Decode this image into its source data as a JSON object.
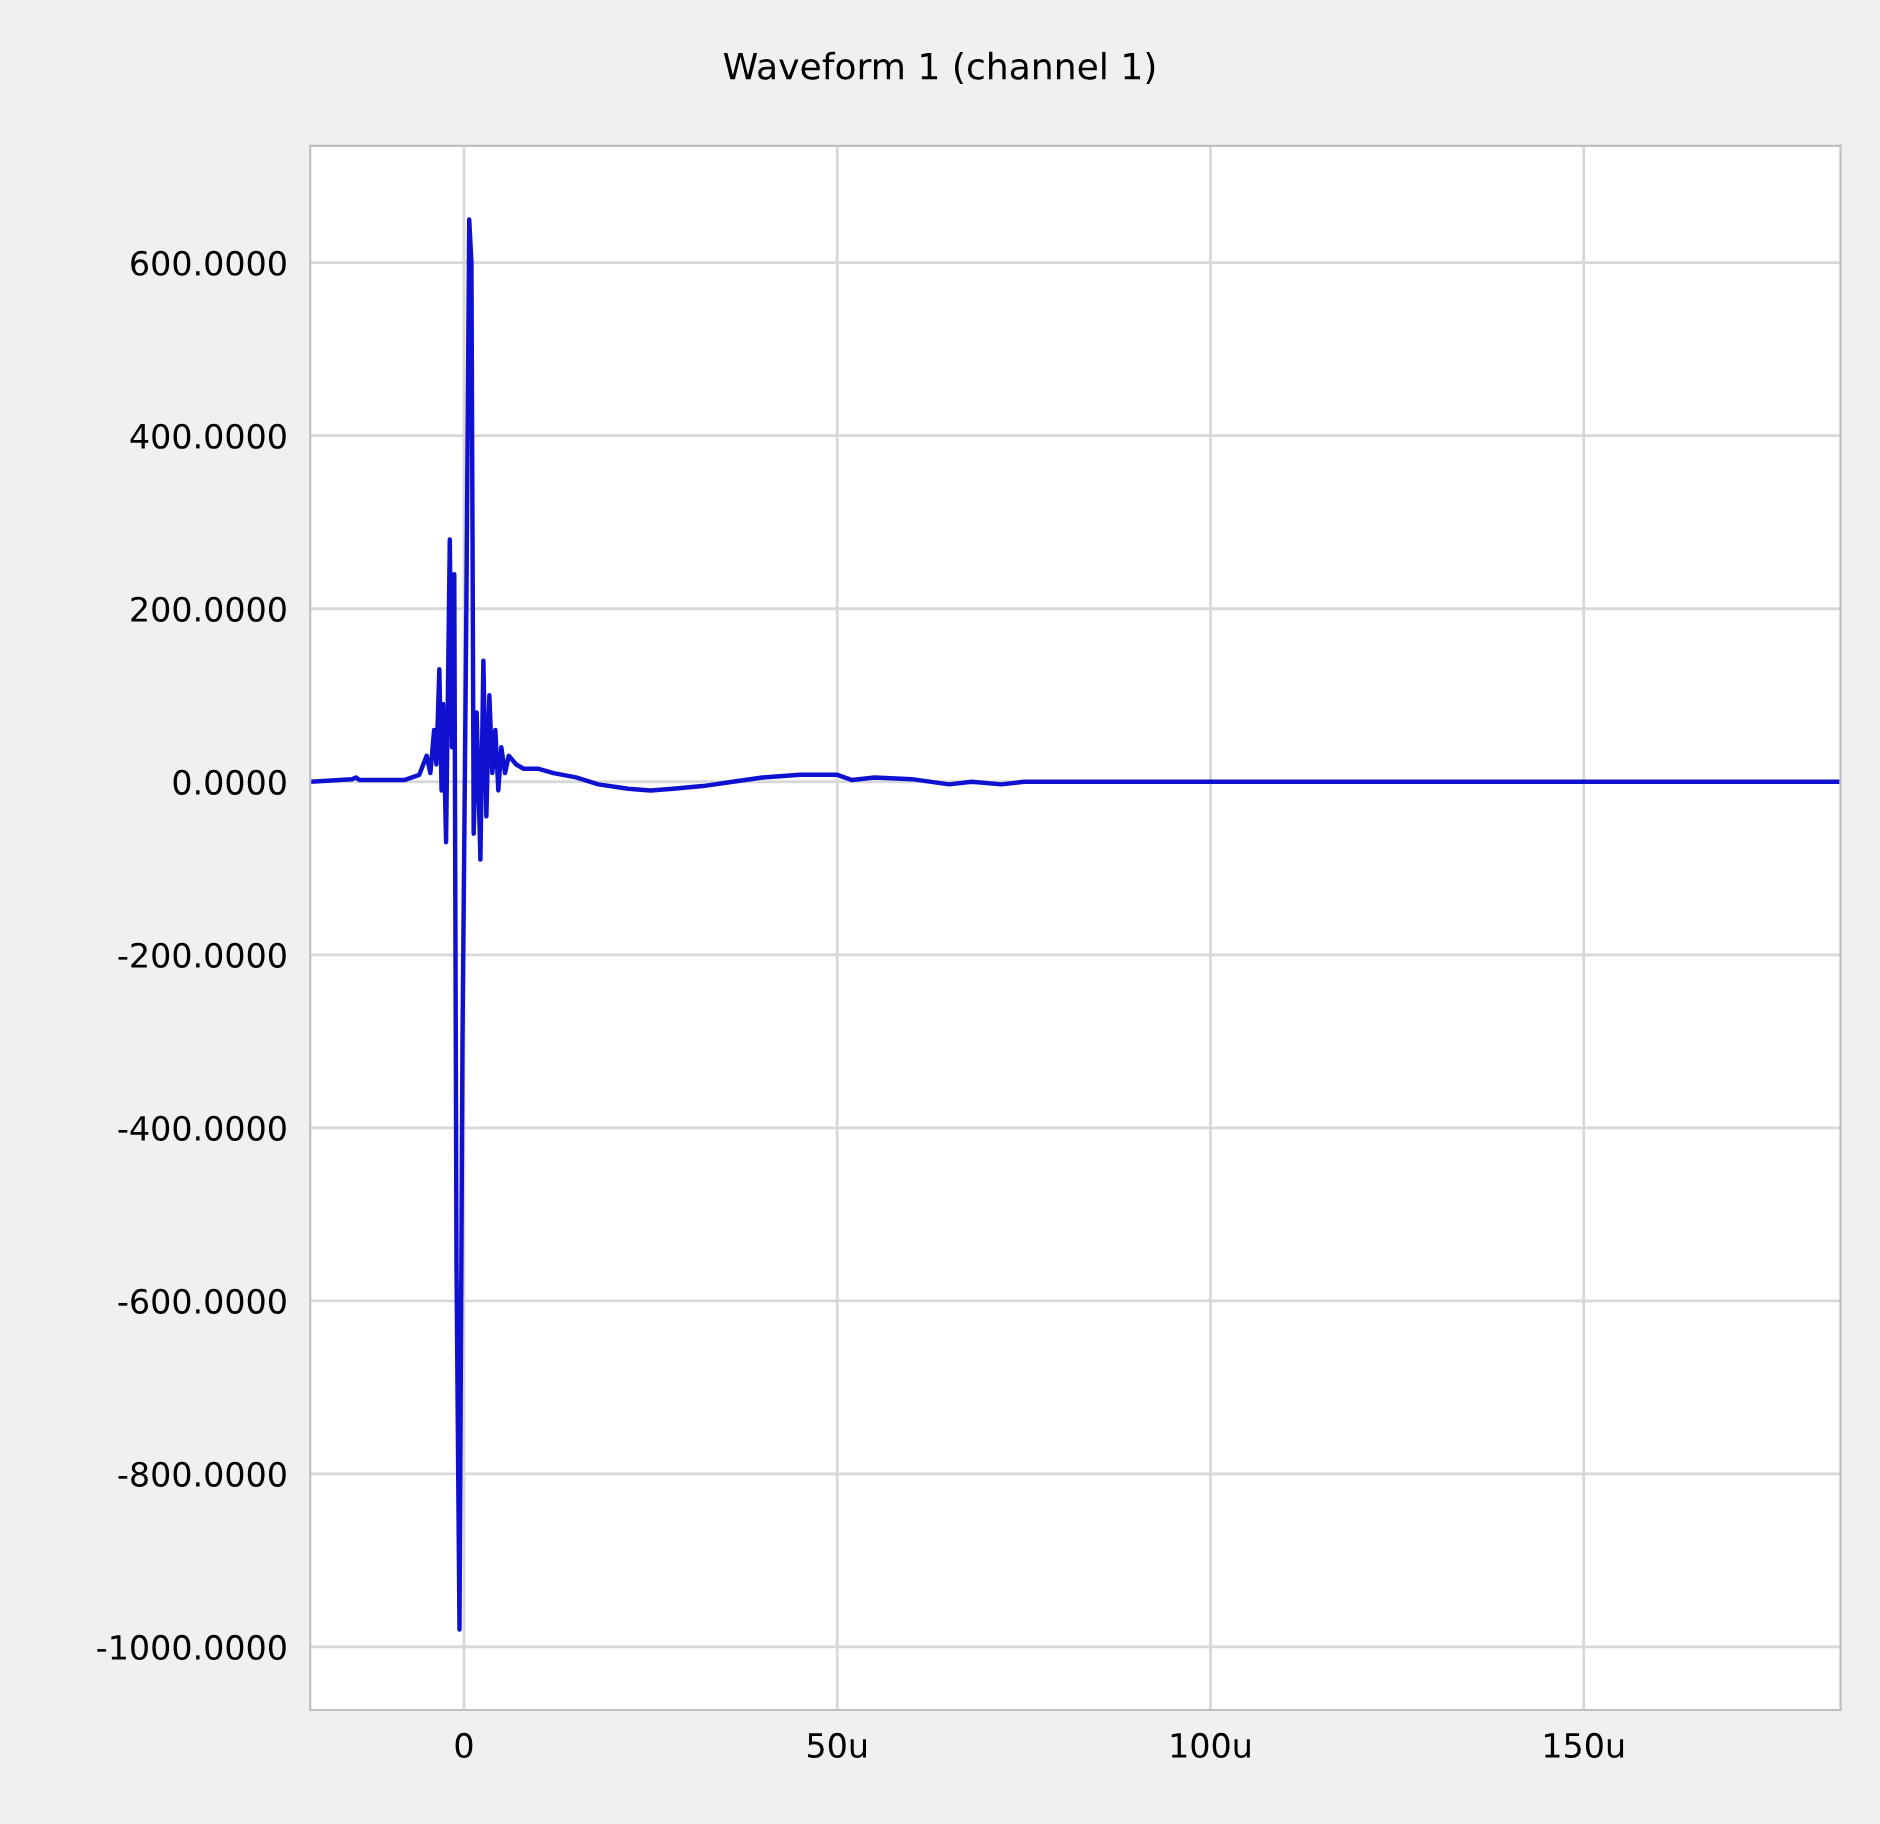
{
  "chart_data": {
    "type": "line",
    "title": "Waveform 1 (channel 1)",
    "series": [
      {
        "color": "#1010d0",
        "x": [
          -20.5,
          -15,
          -14.5,
          -14,
          -8,
          -6,
          -5,
          -4.5,
          -4,
          -3.7,
          -3.3,
          -3,
          -2.8,
          -2.4,
          -1.9,
          -1.6,
          -1.3,
          -1.0,
          -0.6,
          -0.2,
          0.3,
          0.7,
          1.0,
          1.3,
          1.7,
          2.2,
          2.6,
          3.0,
          3.4,
          3.8,
          4.2,
          4.6,
          5.0,
          5.5,
          6,
          7,
          8,
          10,
          12,
          15,
          18,
          22,
          25,
          28,
          32,
          36,
          40,
          45,
          50,
          52,
          55,
          60,
          65,
          68,
          72,
          75,
          80,
          120,
          184
        ],
        "values": [
          0,
          3,
          5,
          2,
          2,
          8,
          30,
          10,
          60,
          20,
          130,
          -10,
          90,
          -70,
          280,
          40,
          240,
          -560,
          -980,
          -300,
          180,
          650,
          600,
          -60,
          80,
          -90,
          140,
          -40,
          100,
          10,
          60,
          -10,
          40,
          10,
          30,
          20,
          15,
          15,
          10,
          5,
          -3,
          -8,
          -10,
          -8,
          -5,
          0,
          5,
          8,
          8,
          2,
          5,
          3,
          -3,
          0,
          -3,
          0,
          0,
          0,
          0
        ]
      }
    ],
    "xlim": [
      -20.6,
      184.4
    ],
    "xticks": [
      0,
      {
        "value": 50,
        "label": "50u"
      },
      {
        "value": 100,
        "label": "100u"
      },
      {
        "value": 150,
        "label": "150u"
      }
    ],
    "ylim": [
      -1073,
      735
    ],
    "yticks": [
      {
        "value": -1000,
        "label": "-1000.0000"
      },
      {
        "value": -800,
        "label": "-800.0000"
      },
      {
        "value": -600,
        "label": "-600.0000"
      },
      {
        "value": -400,
        "label": "-400.0000"
      },
      {
        "value": -200,
        "label": "-200.0000"
      },
      {
        "value": 0,
        "label": "0.0000"
      },
      {
        "value": 200,
        "label": "200.0000"
      },
      {
        "value": 400,
        "label": "400.0000"
      },
      {
        "value": 600,
        "label": "600.0000"
      }
    ],
    "grid": true,
    "marker": "none",
    "line_style": "solid"
  }
}
